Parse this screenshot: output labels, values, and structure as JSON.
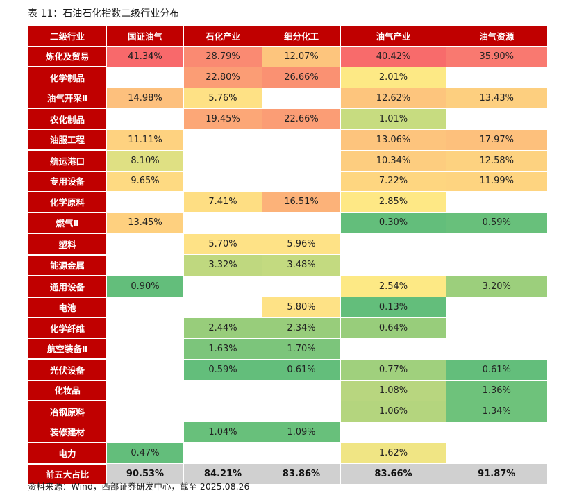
{
  "title": "表 11：石油石化指数二级行业分布",
  "headers": [
    "二级行业",
    "国证油气",
    "石化产业",
    "细分化工",
    "油气产业",
    "油气资源"
  ],
  "rows": [
    {
      "label": "炼化及贸易",
      "cells": [
        {
          "text": "41.34%",
          "color": "#f8696b"
        },
        {
          "text": "28.79%",
          "color": "#fa8a72"
        },
        {
          "text": "12.07%",
          "color": "#fdc57d"
        },
        {
          "text": "40.42%",
          "color": "#f86b6b"
        },
        {
          "text": "35.90%",
          "color": "#f97970"
        }
      ]
    },
    {
      "label": "化学制品",
      "group_start": true,
      "cells": [
        {
          "text": "",
          "color": "#ffffff"
        },
        {
          "text": "22.80%",
          "color": "#fb9d75"
        },
        {
          "text": "26.66%",
          "color": "#fa9172"
        },
        {
          "text": "2.01%",
          "color": "#fde985"
        },
        {
          "text": "",
          "color": "#ffffff"
        }
      ]
    },
    {
      "label": "油气开采Ⅱ",
      "cells": [
        {
          "text": "14.98%",
          "color": "#fdc07d"
        },
        {
          "text": "5.76%",
          "color": "#fee185"
        },
        {
          "text": "",
          "color": "#ffffff"
        },
        {
          "text": "12.62%",
          "color": "#fdc57d"
        },
        {
          "text": "13.43%",
          "color": "#fdcf7f"
        }
      ]
    },
    {
      "label": "农化制品",
      "group_start": true,
      "cells": [
        {
          "text": "",
          "color": "#ffffff"
        },
        {
          "text": "19.45%",
          "color": "#fca777"
        },
        {
          "text": "22.66%",
          "color": "#fb9d75"
        },
        {
          "text": "1.01%",
          "color": "#c7dc80"
        },
        {
          "text": "",
          "color": "#ffffff"
        }
      ]
    },
    {
      "label": "油服工程",
      "cells": [
        {
          "text": "11.11%",
          "color": "#fed280"
        },
        {
          "text": "",
          "color": "#ffffff"
        },
        {
          "text": "",
          "color": "#ffffff"
        },
        {
          "text": "13.06%",
          "color": "#fdc47d"
        },
        {
          "text": "17.97%",
          "color": "#fdc07c"
        }
      ]
    },
    {
      "label": "航运港口",
      "group_start": true,
      "cells": [
        {
          "text": "8.10%",
          "color": "#dfe083"
        },
        {
          "text": "",
          "color": "#ffffff"
        },
        {
          "text": "",
          "color": "#ffffff"
        },
        {
          "text": "10.34%",
          "color": "#fdcd7f"
        },
        {
          "text": "12.58%",
          "color": "#fdd280"
        }
      ]
    },
    {
      "label": "专用设备",
      "cells": [
        {
          "text": "9.65%",
          "color": "#feda82"
        },
        {
          "text": "",
          "color": "#ffffff"
        },
        {
          "text": "",
          "color": "#ffffff"
        },
        {
          "text": "7.22%",
          "color": "#fed680"
        },
        {
          "text": "11.99%",
          "color": "#fed480"
        }
      ]
    },
    {
      "label": "化学原料",
      "cells": [
        {
          "text": "",
          "color": "#ffffff"
        },
        {
          "text": "7.41%",
          "color": "#fede83"
        },
        {
          "text": "16.51%",
          "color": "#fcb279"
        },
        {
          "text": "2.85%",
          "color": "#fee885"
        },
        {
          "text": "",
          "color": "#ffffff"
        }
      ]
    },
    {
      "label": "燃气Ⅱ",
      "group_start": true,
      "cells": [
        {
          "text": "13.45%",
          "color": "#fed07f"
        },
        {
          "text": "",
          "color": "#ffffff"
        },
        {
          "text": "",
          "color": "#ffffff"
        },
        {
          "text": "0.30%",
          "color": "#63be7b"
        },
        {
          "text": "0.59%",
          "color": "#68c07b"
        }
      ]
    },
    {
      "label": "塑料",
      "group_start": true,
      "cells": [
        {
          "text": "",
          "color": "#ffffff"
        },
        {
          "text": "5.70%",
          "color": "#fee286"
        },
        {
          "text": "5.96%",
          "color": "#fee286"
        },
        {
          "text": "",
          "color": "#ffffff"
        },
        {
          "text": "",
          "color": "#ffffff"
        }
      ]
    },
    {
      "label": "能源金属",
      "group_start": true,
      "cells": [
        {
          "text": "",
          "color": "#ffffff"
        },
        {
          "text": "3.32%",
          "color": "#bfd87f"
        },
        {
          "text": "3.48%",
          "color": "#c3da80"
        },
        {
          "text": "",
          "color": "#ffffff"
        },
        {
          "text": "",
          "color": "#ffffff"
        }
      ]
    },
    {
      "label": "通用设备",
      "group_start": true,
      "cells": [
        {
          "text": "0.90%",
          "color": "#63be7b"
        },
        {
          "text": "",
          "color": "#ffffff"
        },
        {
          "text": "",
          "color": "#ffffff"
        },
        {
          "text": "2.54%",
          "color": "#fde985"
        },
        {
          "text": "3.20%",
          "color": "#9ccf7c"
        }
      ]
    },
    {
      "label": "电池",
      "group_start": true,
      "cells": [
        {
          "text": "",
          "color": "#ffffff"
        },
        {
          "text": "",
          "color": "#ffffff"
        },
        {
          "text": "5.80%",
          "color": "#fee286"
        },
        {
          "text": "0.13%",
          "color": "#63be7b"
        },
        {
          "text": "",
          "color": "#ffffff"
        }
      ]
    },
    {
      "label": "化学纤维",
      "cells": [
        {
          "text": "",
          "color": "#ffffff"
        },
        {
          "text": "2.44%",
          "color": "#98cd7b"
        },
        {
          "text": "2.34%",
          "color": "#98cd7b"
        },
        {
          "text": "0.64%",
          "color": "#98cd7b"
        },
        {
          "text": "",
          "color": "#ffffff"
        }
      ]
    },
    {
      "label": "航空装备Ⅱ",
      "cells": [
        {
          "text": "",
          "color": "#ffffff"
        },
        {
          "text": "1.63%",
          "color": "#7cc57b"
        },
        {
          "text": "1.70%",
          "color": "#7cc57b"
        },
        {
          "text": "",
          "color": "#ffffff"
        },
        {
          "text": "",
          "color": "#ffffff"
        }
      ]
    },
    {
      "label": "光伏设备",
      "group_start": true,
      "cells": [
        {
          "text": "",
          "color": "#ffffff"
        },
        {
          "text": "0.59%",
          "color": "#63be7b"
        },
        {
          "text": "0.61%",
          "color": "#63be7b"
        },
        {
          "text": "0.77%",
          "color": "#a0d07d"
        },
        {
          "text": "0.61%",
          "color": "#63be7b"
        }
      ]
    },
    {
      "label": "化妆品",
      "cells": [
        {
          "text": "",
          "color": "#ffffff"
        },
        {
          "text": "",
          "color": "#ffffff"
        },
        {
          "text": "",
          "color": "#ffffff"
        },
        {
          "text": "1.08%",
          "color": "#b8d67f"
        },
        {
          "text": "1.36%",
          "color": "#6ec27b"
        }
      ]
    },
    {
      "label": "冶钢原料",
      "group_start": true,
      "cells": [
        {
          "text": "",
          "color": "#ffffff"
        },
        {
          "text": "",
          "color": "#ffffff"
        },
        {
          "text": "",
          "color": "#ffffff"
        },
        {
          "text": "1.06%",
          "color": "#b4d57e"
        },
        {
          "text": "1.34%",
          "color": "#6ec27b"
        }
      ]
    },
    {
      "label": "装修建材",
      "cells": [
        {
          "text": "",
          "color": "#ffffff"
        },
        {
          "text": "1.04%",
          "color": "#68c07b"
        },
        {
          "text": "1.09%",
          "color": "#68c07b"
        },
        {
          "text": "",
          "color": "#ffffff"
        },
        {
          "text": "",
          "color": "#ffffff"
        }
      ]
    },
    {
      "label": "电力",
      "group_start": true,
      "cells": [
        {
          "text": "0.47%",
          "color": "#63be7b"
        },
        {
          "text": "",
          "color": "#ffffff"
        },
        {
          "text": "",
          "color": "#ffffff"
        },
        {
          "text": "1.62%",
          "color": "#f0e584"
        },
        {
          "text": "",
          "color": "#ffffff"
        }
      ]
    }
  ],
  "total": {
    "label": "前五大占比",
    "values": [
      "90.53%",
      "84.21%",
      "83.86%",
      "83.66%",
      "91.87%"
    ]
  },
  "source": "资料来源：Wind，西部证券研发中心，截至 2025.08.26",
  "colors": {
    "header_bg": "#c00000",
    "total_bg": "#d0d0d0"
  }
}
